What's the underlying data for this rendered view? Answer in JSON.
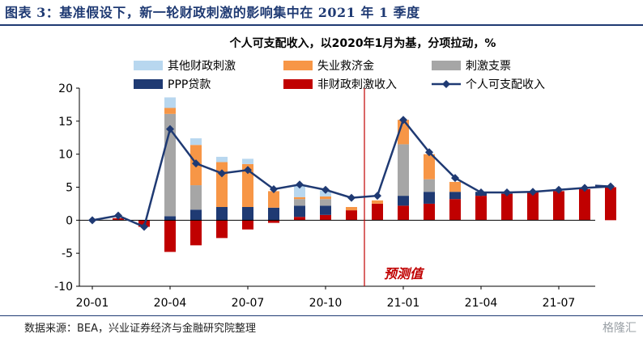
{
  "header": {
    "title": "图表 3：基准假设下，新一轮财政刺激的影响集中在 2021 年 1 季度"
  },
  "footer": {
    "source": "数据来源：BEA，兴业证券经济与金融研究院整理",
    "watermark": "格隆汇"
  },
  "chart_data": {
    "type": "bar",
    "title": "个人可支配收入，以2020年1月为基，分项拉动，%",
    "legend": [
      "其他财政刺激",
      "失业救济金",
      "刺激支票",
      "PPP贷款",
      "非财政刺激收入",
      "个人可支配收入"
    ],
    "legend_placement": "top",
    "forecast_label": "预测值",
    "forecast_start": "20-12",
    "grid": false,
    "ylim": [
      -10,
      20
    ],
    "yticks": [
      "20",
      "15",
      "10",
      "5",
      "0",
      "-5",
      "-10"
    ],
    "x_tick_labels": [
      "20-01",
      "20-04",
      "20-07",
      "20-10",
      "21-01",
      "21-04",
      "21-07"
    ],
    "categories": [
      "20-01",
      "20-02",
      "20-03",
      "20-04",
      "20-05",
      "20-06",
      "20-07",
      "20-08",
      "20-09",
      "20-10",
      "20-11",
      "20-12",
      "21-01",
      "21-02",
      "21-03",
      "21-04",
      "21-05",
      "21-06",
      "21-07",
      "21-08",
      "21-09"
    ],
    "series": [
      {
        "name": "非财政刺激收入",
        "color": "#c00000",
        "values": [
          0,
          0.3,
          -1,
          -4.8,
          -3.8,
          -2.7,
          -1.4,
          -0.4,
          0.5,
          0.8,
          1.5,
          2.5,
          2.2,
          2.5,
          3.2,
          3.7,
          4.0,
          4.2,
          4.4,
          4.7,
          5.0
        ]
      },
      {
        "name": "PPP贷款",
        "color": "#1f3a73",
        "values": [
          0,
          0,
          0,
          0.6,
          1.6,
          2.0,
          2.0,
          1.9,
          1.7,
          1.4,
          0,
          0,
          1.5,
          1.8,
          1.1,
          0.6,
          0.2,
          0,
          0,
          0,
          0
        ]
      },
      {
        "name": "刺激支票",
        "color": "#a6a6a6",
        "values": [
          0,
          0,
          0,
          15.5,
          3.7,
          0,
          0,
          0,
          1.0,
          1.0,
          0,
          0,
          7.8,
          1.9,
          0,
          0,
          0,
          0,
          0,
          0,
          0
        ]
      },
      {
        "name": "失业救济金",
        "color": "#f79646",
        "values": [
          0,
          0,
          0,
          0.9,
          6.1,
          6.8,
          6.5,
          2.5,
          0.3,
          0.4,
          0.5,
          0.5,
          3.7,
          3.8,
          1.5,
          0,
          0,
          0,
          0,
          0,
          0
        ]
      },
      {
        "name": "其他财政刺激",
        "color": "#b8d7ef",
        "values": [
          0,
          0,
          0,
          1.6,
          1.0,
          0.8,
          0.8,
          0,
          1.8,
          0.9,
          0,
          0,
          0,
          0,
          0,
          0,
          0,
          0,
          0,
          0,
          0
        ]
      },
      {
        "name": "个人可支配收入",
        "color": "#1f3a73",
        "type": "line",
        "values": [
          0,
          0.7,
          -1,
          13.8,
          8.6,
          7.1,
          7.6,
          4.7,
          5.4,
          4.6,
          3.4,
          3.7,
          15.2,
          10.3,
          6.4,
          4.2,
          4.2,
          4.3,
          4.6,
          4.9,
          5.1
        ]
      }
    ]
  }
}
